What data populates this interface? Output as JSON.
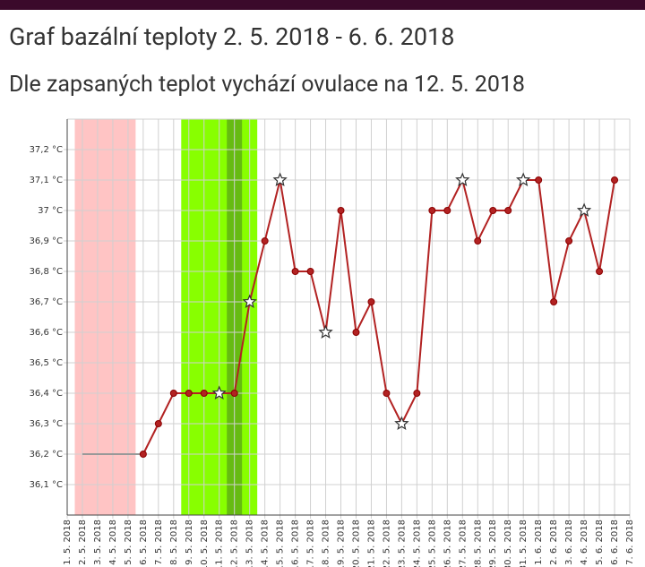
{
  "chart_data": {
    "type": "line",
    "title": "Graf bazální teploty 2. 5. 2018 - 6. 6. 2018",
    "subtitle": "Dle zapsaných teplot vychází ovulace na 12. 5. 2018",
    "categories": [
      "1. 5. 2018",
      "2. 5. 2018",
      "3. 5. 2018",
      "4. 5. 2018",
      "5. 5. 2018",
      "6. 5. 2018",
      "7. 5. 2018",
      "8. 5. 2018",
      "9. 5. 2018",
      "10. 5. 2018",
      "11. 5. 2018",
      "12. 5. 2018",
      "13. 5. 2018",
      "14. 5. 2018",
      "15. 5. 2018",
      "16. 5. 2018",
      "17. 5. 2018",
      "18. 5. 2018",
      "19. 5. 2018",
      "20. 5. 2018",
      "21. 5. 2018",
      "22. 5. 2018",
      "23. 5. 2018",
      "24. 5. 2018",
      "25. 5. 2018",
      "26. 5. 2018",
      "27. 5. 2018",
      "28. 5. 2018",
      "29. 5. 2018",
      "30. 5. 2018",
      "31. 5. 2018",
      "1. 6. 2018",
      "2. 6. 2018",
      "3. 6. 2018",
      "4. 6. 2018",
      "5. 6. 2018",
      "6. 6. 2018",
      "7. 6. 2018"
    ],
    "series": [
      {
        "color": "#999999",
        "values": [
          null,
          36.2,
          36.2,
          36.2,
          36.2,
          36.2,
          null,
          null,
          null,
          null,
          null,
          null,
          null,
          null,
          null,
          null,
          null,
          null,
          null,
          null,
          null,
          null,
          null,
          null,
          null,
          null,
          null,
          null,
          null,
          null,
          null,
          null,
          null,
          null,
          null,
          null,
          null,
          null
        ]
      },
      {
        "color": "#b22222",
        "values": [
          null,
          null,
          null,
          null,
          null,
          36.2,
          36.3,
          36.4,
          36.4,
          36.4,
          36.4,
          36.4,
          36.7,
          36.9,
          37.1,
          36.8,
          36.8,
          36.6,
          37.0,
          36.6,
          36.7,
          36.4,
          36.3,
          36.4,
          37.0,
          37.0,
          37.1,
          36.9,
          37.0,
          37.0,
          37.1,
          37.1,
          36.7,
          36.9,
          37.0,
          36.8,
          37.1,
          null
        ],
        "markers": [
          null,
          null,
          null,
          null,
          null,
          "dot",
          "dot",
          "dot",
          "dot",
          "dot",
          "star",
          "dot",
          "star",
          "dot",
          "star",
          "dot",
          "dot",
          "star",
          "dot",
          "dot",
          "dot",
          "dot",
          "star",
          "dot",
          "dot",
          "dot",
          "star",
          "dot",
          "dot",
          "dot",
          "star",
          "dot",
          "dot",
          "dot",
          "star",
          "dot",
          "dot",
          null
        ]
      }
    ],
    "ylim": [
      36.0,
      37.3
    ],
    "yticks": [
      {
        "value": 36.1,
        "label": "36,1 °C"
      },
      {
        "value": 36.2,
        "label": "36,2 °C"
      },
      {
        "value": 36.3,
        "label": "36,3 °C"
      },
      {
        "value": 36.4,
        "label": "36,4 °C"
      },
      {
        "value": 36.5,
        "label": "36,5 °C"
      },
      {
        "value": 36.6,
        "label": "36,6 °C"
      },
      {
        "value": 36.7,
        "label": "36,7 °C"
      },
      {
        "value": 36.8,
        "label": "36,8 °C"
      },
      {
        "value": 36.9,
        "label": "36,9 °C"
      },
      {
        "value": 37.0,
        "label": "37 °C"
      },
      {
        "value": 37.1,
        "label": "37,1 °C"
      },
      {
        "value": 37.2,
        "label": "37,2 °C"
      }
    ],
    "grid": true
  }
}
